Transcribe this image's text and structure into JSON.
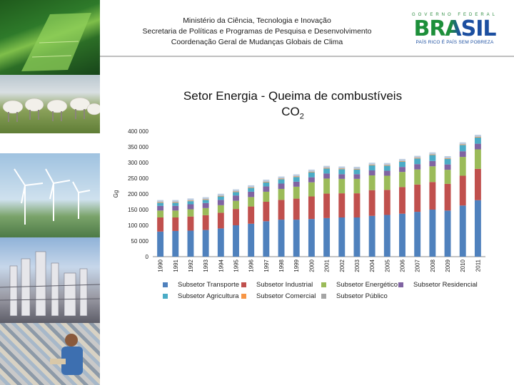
{
  "header": {
    "line1": "Ministério da Ciência, Tecnologia e Inovação",
    "line2": "Secretaria de Políticas e Programas de Pesquisa e Desenvolvimento",
    "line3": "Coordenação Geral de Mudanças Globais de Clima"
  },
  "brand": {
    "top": "GOVERNO FEDERAL",
    "word": "BRASIL",
    "tagline": "PAÍS RICO É PAÍS SEM POBREZA"
  },
  "chart_data": {
    "type": "bar",
    "stacked": true,
    "title": "Setor Energia - Queima de combustíveis",
    "subtitle_main": "CO",
    "subtitle_sub": "2",
    "ylabel": "Gg",
    "xlabel": "",
    "ylim": [
      0,
      400000
    ],
    "yticks": [
      0,
      50000,
      100000,
      150000,
      200000,
      250000,
      300000,
      350000,
      400000
    ],
    "ytick_labels": [
      "0",
      "50 000",
      "100 000",
      "150 000",
      "200 000",
      "250 000",
      "300 000",
      "350 000",
      "400 000"
    ],
    "grid": false,
    "legend_position": "bottom",
    "categories": [
      "1990",
      "1991",
      "1992",
      "1993",
      "1994",
      "1995",
      "1996",
      "1997",
      "1998",
      "1999",
      "2000",
      "2001",
      "2002",
      "2003",
      "2004",
      "2005",
      "2006",
      "2007",
      "2008",
      "2009",
      "2010",
      "2011"
    ],
    "series": [
      {
        "name": "Subsetor Transporte",
        "color": "#4f81bd",
        "values": [
          80000,
          82000,
          83000,
          85000,
          90000,
          100000,
          105000,
          113000,
          118000,
          118000,
          120000,
          123000,
          125000,
          125000,
          130000,
          133000,
          137000,
          143000,
          150000,
          147000,
          163000,
          180000
        ]
      },
      {
        "name": "Subsetor Industrial",
        "color": "#c0504d",
        "values": [
          45000,
          43000,
          45000,
          47000,
          50000,
          52000,
          55000,
          62000,
          63000,
          67000,
          72000,
          78000,
          77000,
          77000,
          82000,
          80000,
          85000,
          87000,
          88000,
          85000,
          95000,
          100000
        ]
      },
      {
        "name": "Subsetor Energético",
        "color": "#9bbb59",
        "values": [
          22000,
          22000,
          23000,
          23000,
          24000,
          26000,
          30000,
          32000,
          35000,
          38000,
          45000,
          48000,
          46000,
          46000,
          47000,
          45000,
          48000,
          48000,
          50000,
          45000,
          60000,
          62000
        ]
      },
      {
        "name": "Subsetor Residencial",
        "color": "#8064a2",
        "values": [
          15000,
          15000,
          16000,
          16000,
          17000,
          17000,
          17000,
          17000,
          17000,
          16000,
          16000,
          16000,
          15000,
          15000,
          16000,
          16000,
          16000,
          17000,
          17000,
          17000,
          18000,
          18000
        ]
      },
      {
        "name": "Subsetor Agricultura",
        "color": "#4bacc6",
        "values": [
          10000,
          10000,
          10000,
          10000,
          11000,
          11000,
          12000,
          13000,
          14000,
          15000,
          16000,
          16000,
          16000,
          15000,
          16000,
          16000,
          17000,
          18000,
          19000,
          18000,
          20000,
          20000
        ]
      },
      {
        "name": "Subsetor Comercial",
        "color": "#f79646",
        "values": [
          2000,
          2000,
          2000,
          2000,
          2000,
          2000,
          2000,
          2000,
          2000,
          2000,
          2000,
          2000,
          2000,
          2000,
          2000,
          2000,
          2000,
          2000,
          2000,
          2000,
          2000,
          2000
        ]
      },
      {
        "name": "Subsetor Público",
        "color": "#a5a5a5",
        "values": [
          2000,
          2000,
          2000,
          2000,
          2000,
          2000,
          2000,
          2000,
          2000,
          2000,
          2000,
          2000,
          2000,
          2000,
          2000,
          2000,
          2000,
          2000,
          2000,
          2000,
          2000,
          2000
        ]
      }
    ]
  },
  "legend": {
    "items": [
      {
        "label": "Subsetor Transporte",
        "color": "#4f81bd"
      },
      {
        "label": "Subsetor Industrial",
        "color": "#c0504d"
      },
      {
        "label": "Subsetor Energético",
        "color": "#9bbb59"
      },
      {
        "label": "Subsetor Residencial",
        "color": "#8064a2"
      },
      {
        "label": "Subsetor Agricultura",
        "color": "#4bacc6"
      },
      {
        "label": "Subsetor Comercial",
        "color": "#f79646"
      },
      {
        "label": "Subsetor Público",
        "color": "#a5a5a5"
      }
    ]
  },
  "photos": [
    "forest-aerial",
    "cattle",
    "wind-turbines",
    "industrial-plant",
    "recycling-cans"
  ]
}
